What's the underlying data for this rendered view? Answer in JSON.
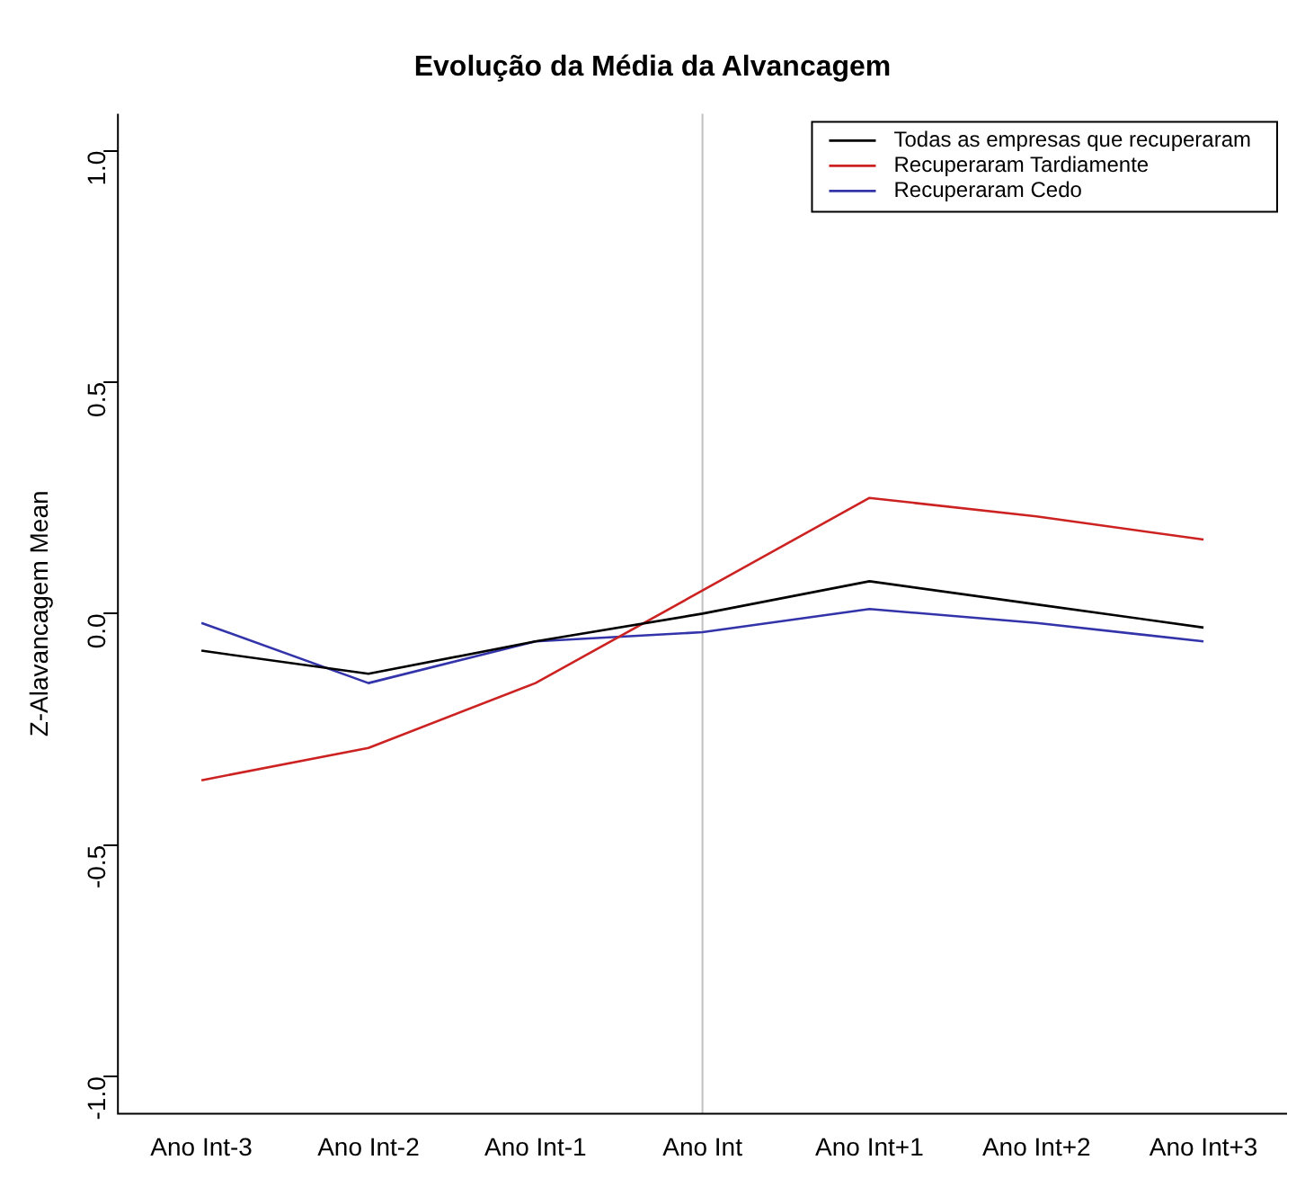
{
  "chart_data": {
    "type": "line",
    "title": "Evolução da Média da Alvancagem",
    "ylabel": "Z-Alavancagem Mean",
    "categories": [
      "Ano Int-3",
      "Ano Int-2",
      "Ano Int-1",
      "Ano Int",
      "Ano Int+1",
      "Ano Int+2",
      "Ano Int+3"
    ],
    "series": [
      {
        "name": "Todas as empresas que recuperaram",
        "color": "#000000",
        "values": [
          -0.08,
          -0.13,
          -0.06,
          0.0,
          0.07,
          0.02,
          -0.03
        ]
      },
      {
        "name": "Recuperaram Tardiamente",
        "color": "#cc2222",
        "values": [
          -0.36,
          -0.29,
          -0.15,
          0.05,
          0.25,
          0.21,
          0.16
        ]
      },
      {
        "name": "Recuperaram Cedo",
        "color": "#3333aa",
        "values": [
          -0.02,
          -0.15,
          -0.06,
          -0.04,
          0.01,
          -0.02,
          -0.06
        ]
      }
    ],
    "ylim": [
      -1.08,
      1.08
    ],
    "yticks": [
      {
        "value": -1,
        "label": "-1.0"
      },
      -0.5,
      {
        "value": 0,
        "label": "0.0"
      },
      0.5,
      {
        "value": 1,
        "label": "1.0"
      }
    ],
    "grid": false,
    "legend": "top right",
    "marker": "none",
    "line_style": "solid",
    "ref_lines": [
      {
        "axis": "x",
        "value": "Ano Int",
        "color": "#c0c0c0"
      }
    ]
  }
}
